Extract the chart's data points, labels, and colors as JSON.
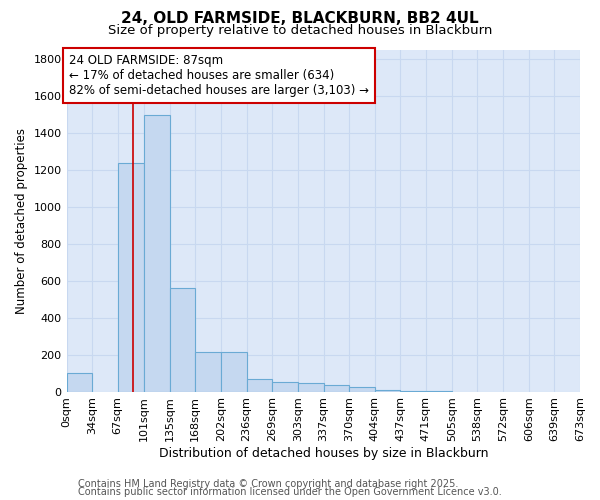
{
  "title": "24, OLD FARMSIDE, BLACKBURN, BB2 4UL",
  "subtitle": "Size of property relative to detached houses in Blackburn",
  "xlabel": "Distribution of detached houses by size in Blackburn",
  "ylabel": "Number of detached properties",
  "footnote1": "Contains HM Land Registry data © Crown copyright and database right 2025.",
  "footnote2": "Contains public sector information licensed under the Open Government Licence v3.0.",
  "bin_edges": [
    0,
    34,
    67,
    101,
    135,
    168,
    202,
    236,
    269,
    303,
    337,
    370,
    404,
    437,
    471,
    505,
    538,
    572,
    606,
    639,
    673
  ],
  "bar_heights": [
    100,
    0,
    1240,
    1500,
    560,
    215,
    215,
    70,
    50,
    45,
    35,
    25,
    10,
    3,
    1,
    0,
    0,
    0,
    0,
    0
  ],
  "bar_color": "#c5d8f0",
  "bar_edge_color": "#6aaad4",
  "fig_bg_color": "#ffffff",
  "plot_bg_color": "#dde8f8",
  "grid_color": "#c8d8f0",
  "property_line_x": 87,
  "property_line_color": "#cc0000",
  "annotation_text": "24 OLD FARMSIDE: 87sqm\n← 17% of detached houses are smaller (634)\n82% of semi-detached houses are larger (3,103) →",
  "annotation_box_facecolor": "#ffffff",
  "annotation_box_edgecolor": "#cc0000",
  "ylim": [
    0,
    1850
  ],
  "yticks": [
    0,
    200,
    400,
    600,
    800,
    1000,
    1200,
    1400,
    1600,
    1800
  ],
  "title_fontsize": 11,
  "subtitle_fontsize": 9.5,
  "annotation_fontsize": 8.5,
  "xlabel_fontsize": 9,
  "ylabel_fontsize": 8.5,
  "footnote_fontsize": 7,
  "tick_label_fontsize": 8
}
